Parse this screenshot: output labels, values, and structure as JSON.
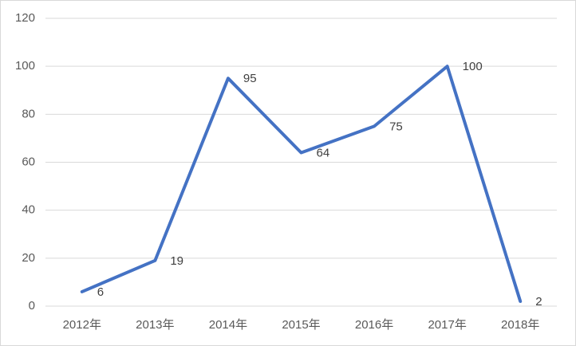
{
  "chart_data": {
    "type": "line",
    "categories": [
      "2012年",
      "2013年",
      "2014年",
      "2015年",
      "2016年",
      "2017年",
      "2018年"
    ],
    "series": [
      {
        "color": "#4472c4",
        "values": [
          6,
          19,
          95,
          64,
          75,
          100,
          2
        ]
      }
    ],
    "ylim": [
      0,
      120
    ],
    "yticks": [
      0,
      20,
      40,
      60,
      80,
      100,
      120
    ],
    "grid": true
  }
}
